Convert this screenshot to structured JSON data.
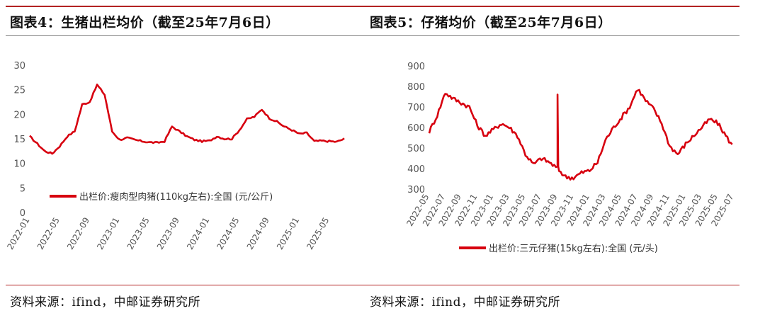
{
  "panels": [
    {
      "title": "图表4：生猪出栏均价（截至25年7月6日）",
      "source": "资料来源：ifind，中邮证券研究所"
    },
    {
      "title": "图表5：仔猪均价（截至25年7月6日）",
      "source": "资料来源：ifind，中邮证券研究所"
    }
  ],
  "chart_data": [
    {
      "type": "line",
      "title": "",
      "xlabel": "",
      "ylabel": "",
      "ylim": [
        0,
        30
      ],
      "yticks": [
        "0",
        "5",
        "10",
        "15",
        "20",
        "25",
        "30"
      ],
      "xticks": [
        "2022-01",
        "2022-05",
        "2022-09",
        "2023-01",
        "2023-05",
        "2023-09",
        "2024-01",
        "2024-05",
        "2024-09",
        "2025-01",
        "2025-05"
      ],
      "xlim": [
        "2022-01",
        "2025-07"
      ],
      "legend_position": "bottom",
      "grid": false,
      "color": "#d7000f",
      "series": [
        {
          "name": "出栏价:瘦肉型肉猪(110kg左右):全国 (元/公斤)",
          "x": [
            "2022-01",
            "2022-02",
            "2022-03",
            "2022-04",
            "2022-05",
            "2022-06",
            "2022-07",
            "2022-08",
            "2022-09",
            "2022-10",
            "2022-11",
            "2022-12",
            "2023-01",
            "2023-02",
            "2023-03",
            "2023-04",
            "2023-05",
            "2023-06",
            "2023-07",
            "2023-08",
            "2023-09",
            "2023-10",
            "2023-11",
            "2023-12",
            "2024-01",
            "2024-02",
            "2024-03",
            "2024-04",
            "2024-05",
            "2024-06",
            "2024-07",
            "2024-08",
            "2024-09",
            "2024-10",
            "2024-11",
            "2024-12",
            "2025-01",
            "2025-02",
            "2025-03",
            "2025-04",
            "2025-05",
            "2025-06",
            "2025-07"
          ],
          "values": [
            15.5,
            14.0,
            12.5,
            12.0,
            13.5,
            15.5,
            16.5,
            22.0,
            22.5,
            26.0,
            24.0,
            16.5,
            14.8,
            15.2,
            14.8,
            14.5,
            14.3,
            14.2,
            14.5,
            17.5,
            16.5,
            15.5,
            14.8,
            14.5,
            14.6,
            15.5,
            15.0,
            15.0,
            16.8,
            19.0,
            19.5,
            21.0,
            19.2,
            18.5,
            17.5,
            16.8,
            16.0,
            16.2,
            14.5,
            14.6,
            14.5,
            14.4,
            15.0
          ]
        }
      ]
    },
    {
      "type": "line",
      "title": "",
      "xlabel": "",
      "ylabel": "",
      "ylim": [
        300,
        900
      ],
      "yticks": [
        "300",
        "400",
        "500",
        "600",
        "700",
        "800",
        "900"
      ],
      "xticks": [
        "2022-05",
        "2022-07",
        "2022-09",
        "2022-11",
        "2023-01",
        "2023-03",
        "2023-05",
        "2023-07",
        "2023-09",
        "2023-11",
        "2024-01",
        "2024-03",
        "2024-05",
        "2024-07",
        "2024-09",
        "2024-11",
        "2025-01",
        "2025-03",
        "2025-05",
        "2025-07"
      ],
      "xlim": [
        "2022-05",
        "2025-07"
      ],
      "legend_position": "bottom",
      "grid": false,
      "color": "#d7000f",
      "series": [
        {
          "name": "出栏价:三元仔猪(15kg左右):全国 (元/头)",
          "x": [
            "2022-05",
            "2022-06",
            "2022-07",
            "2022-08",
            "2022-09",
            "2022-10",
            "2022-11",
            "2022-12",
            "2023-01",
            "2023-02",
            "2023-03",
            "2023-04",
            "2023-05",
            "2023-06",
            "2023-07",
            "2023-08",
            "2023-09",
            "2023-10",
            "2023-11",
            "2023-12",
            "2024-01",
            "2024-02",
            "2024-03",
            "2024-04",
            "2024-05",
            "2024-06",
            "2024-07",
            "2024-08",
            "2024-09",
            "2024-10",
            "2024-11",
            "2024-12",
            "2025-01",
            "2025-02",
            "2025-03",
            "2025-04",
            "2025-05",
            "2025-06",
            "2025-07"
          ],
          "values": [
            580,
            660,
            770,
            740,
            720,
            700,
            610,
            560,
            590,
            620,
            600,
            560,
            470,
            420,
            450,
            430,
            400,
            360,
            355,
            380,
            390,
            430,
            540,
            600,
            650,
            700,
            790,
            730,
            690,
            620,
            510,
            470,
            520,
            560,
            600,
            640,
            620,
            560,
            500
          ],
          "spike": {
            "x": "2023-09",
            "value": 760
          }
        }
      ]
    }
  ]
}
